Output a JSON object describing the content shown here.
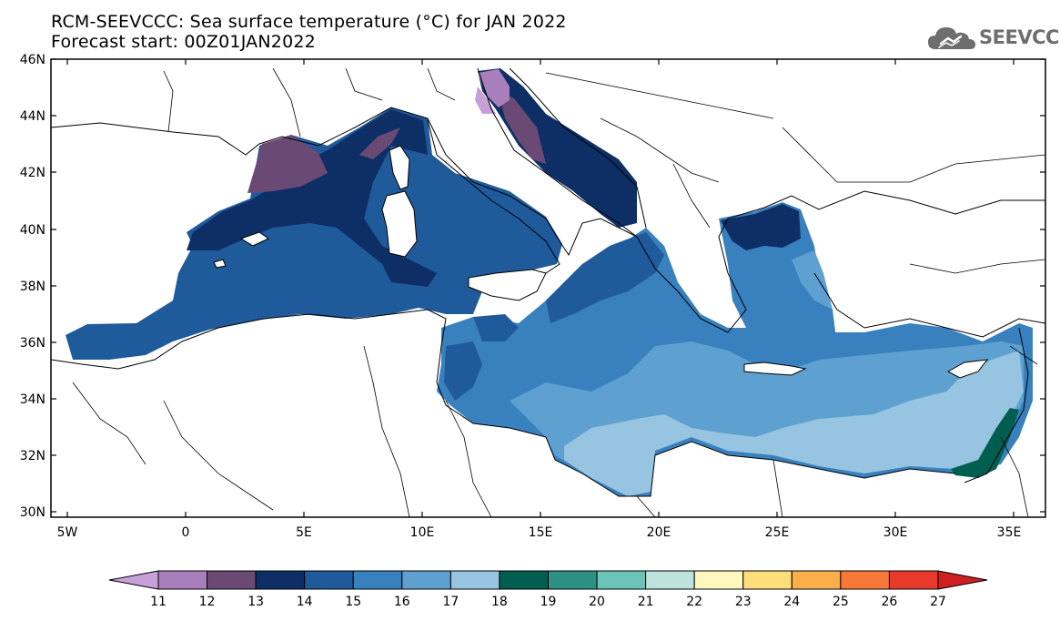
{
  "title_line1": "RCM-SEEVCCC: Sea surface temperature (°C) for JAN 2022",
  "title_line2": "Forecast start: 00Z01JAN2022",
  "logo_text": "SEEVCCC",
  "lat_labels": [
    "46N",
    "44N",
    "42N",
    "40N",
    "38N",
    "36N",
    "34N",
    "32N",
    "30N"
  ],
  "lon_labels": [
    "5W",
    "0",
    "5E",
    "10E",
    "15E",
    "20E",
    "25E",
    "30E",
    "35E"
  ],
  "colorbar": {
    "levels": [
      "11",
      "12",
      "13",
      "14",
      "15",
      "16",
      "17",
      "18",
      "19",
      "20",
      "21",
      "22",
      "23",
      "24",
      "25",
      "26",
      "27"
    ],
    "colors": [
      "#c8a0d8",
      "#a97fbb",
      "#6a4a74",
      "#0d2f66",
      "#1f5a9a",
      "#3880be",
      "#5ea0d0",
      "#97c4e0",
      "#005e50",
      "#2e8f85",
      "#6cc4b8",
      "#bde4dc",
      "#fef8c0",
      "#fede7a",
      "#fdae4a",
      "#f8783a",
      "#e83a2a",
      "#d01f1f"
    ]
  }
}
